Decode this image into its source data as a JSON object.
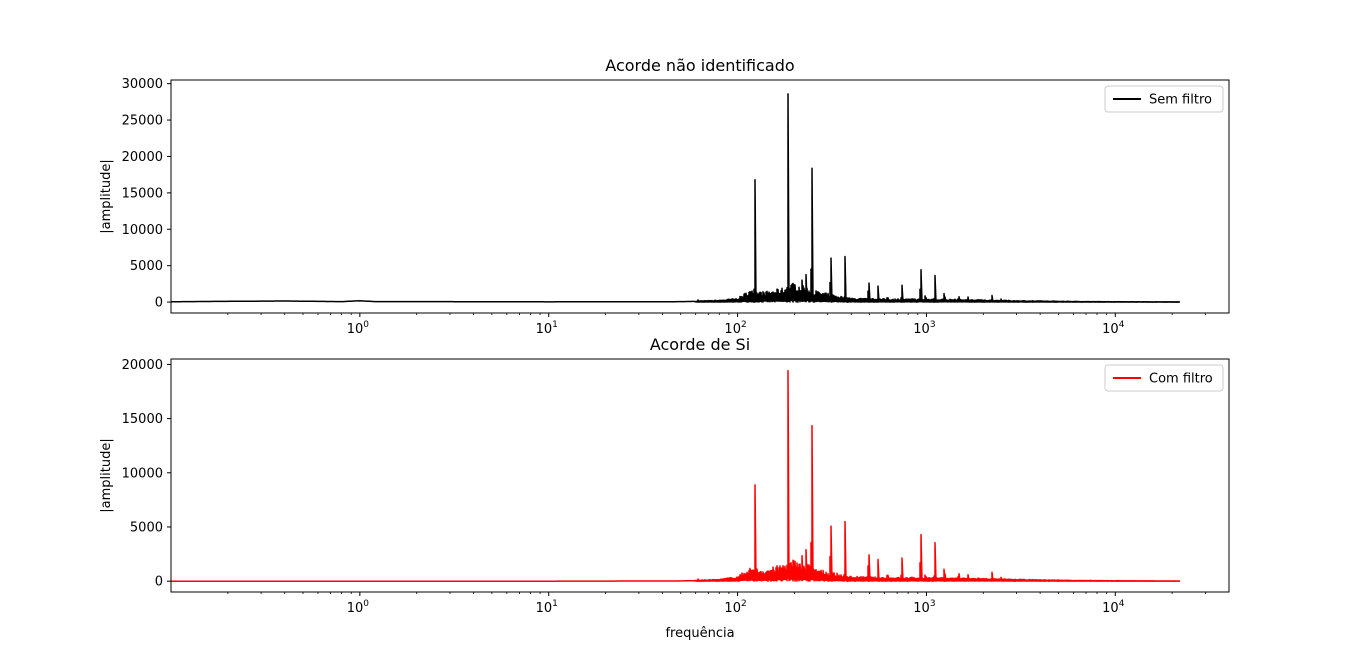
{
  "chart_data": [
    {
      "type": "line",
      "title": "Acorde não identificado",
      "xlabel": "",
      "ylabel": "|amplitude|",
      "xscale": "log",
      "xlim": [
        0.1,
        40000
      ],
      "ylim": [
        -1500,
        30500
      ],
      "yticks": [
        0,
        5000,
        10000,
        15000,
        20000,
        25000,
        30000
      ],
      "xticks": [
        {
          "base": "10",
          "exp": "0"
        },
        {
          "base": "10",
          "exp": "1"
        },
        {
          "base": "10",
          "exp": "2"
        },
        {
          "base": "10",
          "exp": "3"
        },
        {
          "base": "10",
          "exp": "4"
        }
      ],
      "grid": false,
      "legend": {
        "placement": "top-right",
        "entries": [
          {
            "name": "Sem filtro",
            "color": "#000000"
          }
        ]
      },
      "series": [
        {
          "name": "Sem filtro",
          "color": "#000000",
          "peaks": [
            [
              61.7,
              300
            ],
            [
              123.5,
              17400
            ],
            [
              185,
              28700
            ],
            [
              220,
              3600
            ],
            [
              230,
              3900
            ],
            [
              247,
              22300
            ],
            [
              311,
              8800
            ],
            [
              370,
              6500
            ],
            [
              494,
              4200
            ],
            [
              554,
              2200
            ],
            [
              622,
              1200
            ],
            [
              740,
              2800
            ],
            [
              932,
              6200
            ],
            [
              988,
              1500
            ],
            [
              1108,
              3900
            ],
            [
              1245,
              1900
            ],
            [
              1480,
              1200
            ],
            [
              1661,
              700
            ],
            [
              1865,
              600
            ],
            [
              2217,
              1100
            ],
            [
              2489,
              500
            ],
            [
              2960,
              300
            ]
          ],
          "baseline": [
            [
              0.1,
              50
            ],
            [
              0.4,
              150
            ],
            [
              0.8,
              60
            ],
            [
              1.0,
              180
            ],
            [
              1.2,
              60
            ],
            [
              3,
              60
            ],
            [
              10,
              30
            ],
            [
              50,
              60
            ],
            [
              80,
              150
            ],
            [
              100,
              300
            ],
            [
              115,
              900
            ],
            [
              140,
              800
            ],
            [
              175,
              1100
            ],
            [
              200,
              1500
            ],
            [
              270,
              800
            ],
            [
              400,
              300
            ],
            [
              600,
              250
            ],
            [
              1000,
              250
            ],
            [
              2000,
              180
            ],
            [
              3000,
              120
            ],
            [
              7000,
              50
            ],
            [
              22000,
              20
            ]
          ]
        }
      ]
    },
    {
      "type": "line",
      "title": "Acorde de Si",
      "xlabel": "frequência",
      "ylabel": "|amplitude|",
      "xscale": "log",
      "xlim": [
        0.1,
        40000
      ],
      "ylim": [
        -1000,
        20500
      ],
      "yticks": [
        0,
        5000,
        10000,
        15000,
        20000
      ],
      "xticks": [
        {
          "base": "10",
          "exp": "0"
        },
        {
          "base": "10",
          "exp": "1"
        },
        {
          "base": "10",
          "exp": "2"
        },
        {
          "base": "10",
          "exp": "3"
        },
        {
          "base": "10",
          "exp": "4"
        }
      ],
      "grid": false,
      "legend": {
        "placement": "top-right",
        "entries": [
          {
            "name": "Com filtro",
            "color": "#ff0000"
          }
        ]
      },
      "series": [
        {
          "name": "Com filtro",
          "color": "#ff0000",
          "peaks": [
            [
              61.7,
              200
            ],
            [
              123.5,
              9200
            ],
            [
              185,
              19500
            ],
            [
              220,
              2800
            ],
            [
              230,
              3000
            ],
            [
              247,
              17400
            ],
            [
              311,
              7400
            ],
            [
              370,
              5700
            ],
            [
              494,
              3900
            ],
            [
              554,
              2000
            ],
            [
              622,
              1100
            ],
            [
              740,
              2600
            ],
            [
              932,
              6000
            ],
            [
              988,
              1000
            ],
            [
              1108,
              3800
            ],
            [
              1245,
              1800
            ],
            [
              1480,
              1100
            ],
            [
              1661,
              600
            ],
            [
              1865,
              500
            ],
            [
              2217,
              1000
            ],
            [
              2489,
              400
            ],
            [
              2960,
              200
            ]
          ],
          "baseline": [
            [
              0.1,
              0
            ],
            [
              10,
              0
            ],
            [
              50,
              20
            ],
            [
              80,
              100
            ],
            [
              100,
              250
            ],
            [
              115,
              700
            ],
            [
              140,
              600
            ],
            [
              175,
              900
            ],
            [
              200,
              1200
            ],
            [
              270,
              600
            ],
            [
              400,
              250
            ],
            [
              600,
              200
            ],
            [
              1000,
              200
            ],
            [
              2000,
              150
            ],
            [
              3000,
              100
            ],
            [
              7000,
              40
            ],
            [
              22000,
              10
            ]
          ]
        }
      ]
    }
  ]
}
